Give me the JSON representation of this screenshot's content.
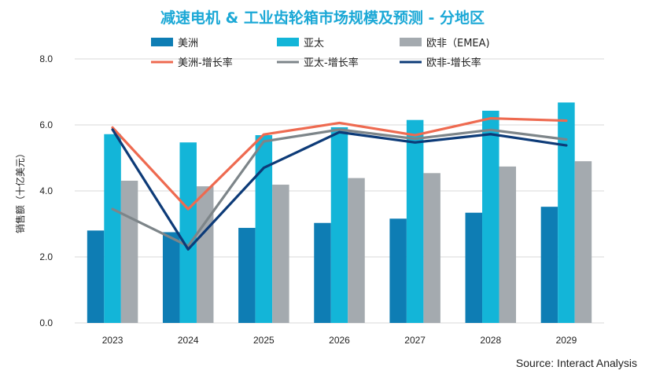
{
  "chart_data": {
    "type": "bar",
    "title": "减速电机 & 工业齿轮箱市场规模及预测 - 分地区",
    "ylabel": "销售额（十亿美元）",
    "xlabel": "",
    "categories": [
      "2023",
      "2024",
      "2025",
      "2026",
      "2027",
      "2028",
      "2029"
    ],
    "ylim": [
      0,
      8
    ],
    "yticks": [
      "0.0",
      "2.0",
      "4.0",
      "6.0",
      "8.0"
    ],
    "grid": true,
    "legend_position": "top",
    "series": [
      {
        "name": "美洲",
        "kind": "bar",
        "color": "#0E7DB4",
        "values": [
          2.8,
          2.75,
          2.88,
          3.03,
          3.16,
          3.34,
          3.52
        ]
      },
      {
        "name": "亚太",
        "kind": "bar",
        "color": "#13B5D8",
        "values": [
          5.72,
          5.47,
          5.69,
          5.93,
          6.15,
          6.43,
          6.68
        ]
      },
      {
        "name": "欧非（EMEA)",
        "kind": "bar",
        "color": "#A4AAAF",
        "values": [
          4.31,
          4.14,
          4.19,
          4.39,
          4.54,
          4.74,
          4.9
        ]
      },
      {
        "name": "美洲-增长率",
        "kind": "line",
        "color": "#EE6A50",
        "values": [
          5.92,
          3.45,
          5.71,
          6.06,
          5.69,
          6.2,
          6.13
        ]
      },
      {
        "name": "亚太-增长率",
        "kind": "line",
        "color": "#7D8589",
        "values": [
          3.45,
          2.33,
          5.5,
          5.86,
          5.58,
          5.85,
          5.56
        ]
      },
      {
        "name": "欧非-增长率",
        "kind": "line",
        "color": "#0D3B78",
        "values": [
          5.86,
          2.23,
          4.7,
          5.78,
          5.47,
          5.72,
          5.38
        ]
      }
    ]
  },
  "source": "Source: Interact Analysis"
}
